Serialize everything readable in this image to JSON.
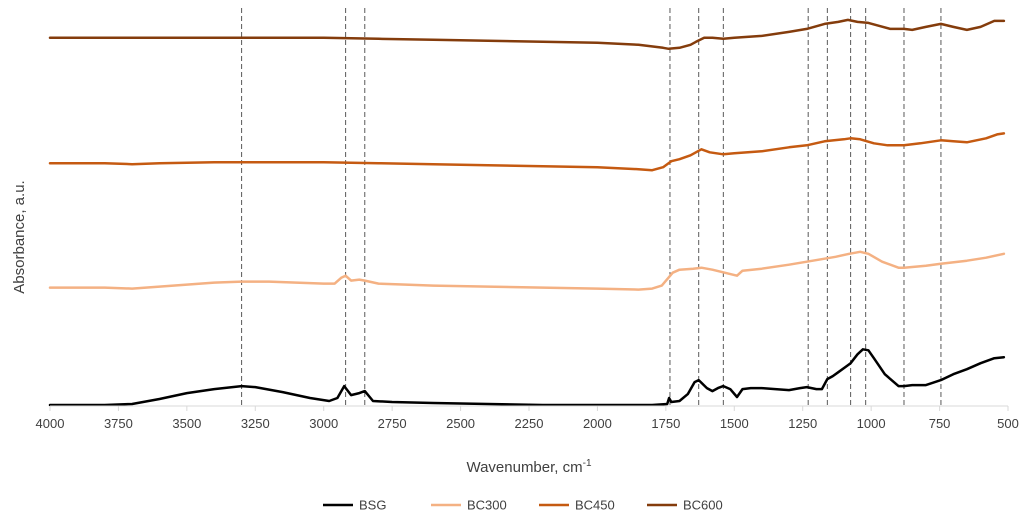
{
  "chart_data": {
    "type": "line",
    "title": "",
    "xlabel": "Wavenumber, cm",
    "xlabel_superscript": "-1",
    "ylabel": "Absorbance, a.u.",
    "xlim": [
      4000,
      500
    ],
    "x_reversed": true,
    "ylim": [
      0,
      4
    ],
    "y_ticks_shown": false,
    "grid": false,
    "legend_position": "bottom",
    "x_ticks": [
      {
        "value": 4000,
        "label": "4000"
      },
      {
        "value": 3750,
        "label": "3750"
      },
      {
        "value": 3500,
        "label": "3500"
      },
      {
        "value": 3250,
        "label": "3250"
      },
      {
        "value": 3000,
        "label": "3000"
      },
      {
        "value": 2750,
        "label": "2750"
      },
      {
        "value": 2500,
        "label": "2500"
      },
      {
        "value": 2250,
        "label": "2250"
      },
      {
        "value": 2000,
        "label": "2000"
      },
      {
        "value": 1750,
        "label": "1750"
      },
      {
        "value": 1500,
        "label": "1500"
      },
      {
        "value": 1250,
        "label": "1250"
      },
      {
        "value": 1000,
        "label": "1000"
      },
      {
        "value": 750,
        "label": "750"
      },
      {
        "value": 500,
        "label": "500"
      }
    ],
    "reference_lines": [
      3300,
      2920,
      2850,
      1735,
      1630,
      1540,
      1230,
      1160,
      1075,
      1020,
      880,
      745
    ],
    "series": [
      {
        "name": "BSG",
        "color": "#000000",
        "points": [
          [
            4000,
            0.01
          ],
          [
            3800,
            0.01
          ],
          [
            3700,
            0.02
          ],
          [
            3600,
            0.07
          ],
          [
            3500,
            0.13
          ],
          [
            3400,
            0.17
          ],
          [
            3300,
            0.2
          ],
          [
            3250,
            0.19
          ],
          [
            3150,
            0.14
          ],
          [
            3050,
            0.08
          ],
          [
            2980,
            0.05
          ],
          [
            2950,
            0.08
          ],
          [
            2925,
            0.2
          ],
          [
            2900,
            0.11
          ],
          [
            2870,
            0.13
          ],
          [
            2850,
            0.15
          ],
          [
            2820,
            0.05
          ],
          [
            2750,
            0.04
          ],
          [
            2600,
            0.03
          ],
          [
            2400,
            0.02
          ],
          [
            2200,
            0.01
          ],
          [
            2000,
            0.01
          ],
          [
            1800,
            0.01
          ],
          [
            1745,
            0.02
          ],
          [
            1738,
            0.08
          ],
          [
            1730,
            0.04
          ],
          [
            1700,
            0.05
          ],
          [
            1670,
            0.12
          ],
          [
            1645,
            0.24
          ],
          [
            1630,
            0.26
          ],
          [
            1600,
            0.18
          ],
          [
            1580,
            0.15
          ],
          [
            1560,
            0.18
          ],
          [
            1540,
            0.2
          ],
          [
            1515,
            0.17
          ],
          [
            1490,
            0.09
          ],
          [
            1470,
            0.17
          ],
          [
            1440,
            0.18
          ],
          [
            1400,
            0.18
          ],
          [
            1350,
            0.17
          ],
          [
            1300,
            0.16
          ],
          [
            1260,
            0.18
          ],
          [
            1235,
            0.19
          ],
          [
            1200,
            0.17
          ],
          [
            1180,
            0.17
          ],
          [
            1160,
            0.27
          ],
          [
            1140,
            0.3
          ],
          [
            1120,
            0.34
          ],
          [
            1090,
            0.4
          ],
          [
            1075,
            0.43
          ],
          [
            1050,
            0.52
          ],
          [
            1030,
            0.57
          ],
          [
            1010,
            0.56
          ],
          [
            990,
            0.48
          ],
          [
            950,
            0.32
          ],
          [
            900,
            0.2
          ],
          [
            880,
            0.2
          ],
          [
            850,
            0.21
          ],
          [
            800,
            0.21
          ],
          [
            745,
            0.26
          ],
          [
            700,
            0.32
          ],
          [
            650,
            0.37
          ],
          [
            600,
            0.43
          ],
          [
            550,
            0.48
          ],
          [
            515,
            0.49
          ]
        ]
      },
      {
        "name": "BC300",
        "color": "#F4B183",
        "points": [
          [
            4000,
            1.19
          ],
          [
            3800,
            1.19
          ],
          [
            3700,
            1.18
          ],
          [
            3600,
            1.2
          ],
          [
            3500,
            1.22
          ],
          [
            3400,
            1.24
          ],
          [
            3300,
            1.25
          ],
          [
            3200,
            1.25
          ],
          [
            3100,
            1.24
          ],
          [
            3000,
            1.23
          ],
          [
            2960,
            1.23
          ],
          [
            2935,
            1.29
          ],
          [
            2920,
            1.31
          ],
          [
            2900,
            1.26
          ],
          [
            2870,
            1.27
          ],
          [
            2850,
            1.26
          ],
          [
            2800,
            1.23
          ],
          [
            2700,
            1.22
          ],
          [
            2600,
            1.21
          ],
          [
            2400,
            1.2
          ],
          [
            2200,
            1.19
          ],
          [
            2000,
            1.18
          ],
          [
            1850,
            1.17
          ],
          [
            1800,
            1.18
          ],
          [
            1765,
            1.21
          ],
          [
            1740,
            1.29
          ],
          [
            1725,
            1.34
          ],
          [
            1700,
            1.37
          ],
          [
            1650,
            1.38
          ],
          [
            1620,
            1.39
          ],
          [
            1580,
            1.37
          ],
          [
            1550,
            1.35
          ],
          [
            1520,
            1.33
          ],
          [
            1490,
            1.31
          ],
          [
            1470,
            1.36
          ],
          [
            1400,
            1.38
          ],
          [
            1300,
            1.42
          ],
          [
            1235,
            1.45
          ],
          [
            1170,
            1.48
          ],
          [
            1130,
            1.5
          ],
          [
            1080,
            1.53
          ],
          [
            1040,
            1.55
          ],
          [
            1010,
            1.53
          ],
          [
            960,
            1.45
          ],
          [
            900,
            1.39
          ],
          [
            880,
            1.39
          ],
          [
            800,
            1.41
          ],
          [
            745,
            1.43
          ],
          [
            650,
            1.46
          ],
          [
            580,
            1.49
          ],
          [
            515,
            1.53
          ]
        ]
      },
      {
        "name": "BC450",
        "color": "#C55A11",
        "points": [
          [
            4000,
            2.44
          ],
          [
            3800,
            2.44
          ],
          [
            3700,
            2.43
          ],
          [
            3600,
            2.44
          ],
          [
            3400,
            2.45
          ],
          [
            3200,
            2.45
          ],
          [
            3000,
            2.45
          ],
          [
            2800,
            2.44
          ],
          [
            2600,
            2.43
          ],
          [
            2400,
            2.42
          ],
          [
            2200,
            2.41
          ],
          [
            2000,
            2.4
          ],
          [
            1850,
            2.38
          ],
          [
            1800,
            2.37
          ],
          [
            1760,
            2.4
          ],
          [
            1730,
            2.46
          ],
          [
            1700,
            2.48
          ],
          [
            1660,
            2.52
          ],
          [
            1620,
            2.58
          ],
          [
            1590,
            2.55
          ],
          [
            1540,
            2.53
          ],
          [
            1500,
            2.54
          ],
          [
            1400,
            2.56
          ],
          [
            1300,
            2.6
          ],
          [
            1235,
            2.62
          ],
          [
            1170,
            2.66
          ],
          [
            1100,
            2.68
          ],
          [
            1075,
            2.69
          ],
          [
            1040,
            2.68
          ],
          [
            990,
            2.64
          ],
          [
            940,
            2.62
          ],
          [
            880,
            2.62
          ],
          [
            820,
            2.64
          ],
          [
            745,
            2.67
          ],
          [
            700,
            2.66
          ],
          [
            650,
            2.65
          ],
          [
            580,
            2.69
          ],
          [
            540,
            2.73
          ],
          [
            515,
            2.74
          ]
        ]
      },
      {
        "name": "BC600",
        "color": "#843C0C",
        "points": [
          [
            4000,
            3.7
          ],
          [
            3800,
            3.7
          ],
          [
            3600,
            3.7
          ],
          [
            3400,
            3.7
          ],
          [
            3200,
            3.7
          ],
          [
            3000,
            3.7
          ],
          [
            2800,
            3.69
          ],
          [
            2600,
            3.68
          ],
          [
            2400,
            3.67
          ],
          [
            2200,
            3.66
          ],
          [
            2000,
            3.65
          ],
          [
            1850,
            3.63
          ],
          [
            1760,
            3.6
          ],
          [
            1740,
            3.59
          ],
          [
            1700,
            3.6
          ],
          [
            1660,
            3.63
          ],
          [
            1640,
            3.66
          ],
          [
            1610,
            3.7
          ],
          [
            1580,
            3.7
          ],
          [
            1540,
            3.69
          ],
          [
            1500,
            3.7
          ],
          [
            1400,
            3.72
          ],
          [
            1300,
            3.76
          ],
          [
            1235,
            3.79
          ],
          [
            1170,
            3.84
          ],
          [
            1120,
            3.86
          ],
          [
            1085,
            3.88
          ],
          [
            1050,
            3.86
          ],
          [
            1010,
            3.85
          ],
          [
            970,
            3.82
          ],
          [
            930,
            3.79
          ],
          [
            880,
            3.79
          ],
          [
            850,
            3.78
          ],
          [
            800,
            3.81
          ],
          [
            745,
            3.84
          ],
          [
            700,
            3.81
          ],
          [
            650,
            3.78
          ],
          [
            600,
            3.81
          ],
          [
            550,
            3.87
          ],
          [
            515,
            3.87
          ]
        ]
      }
    ]
  }
}
